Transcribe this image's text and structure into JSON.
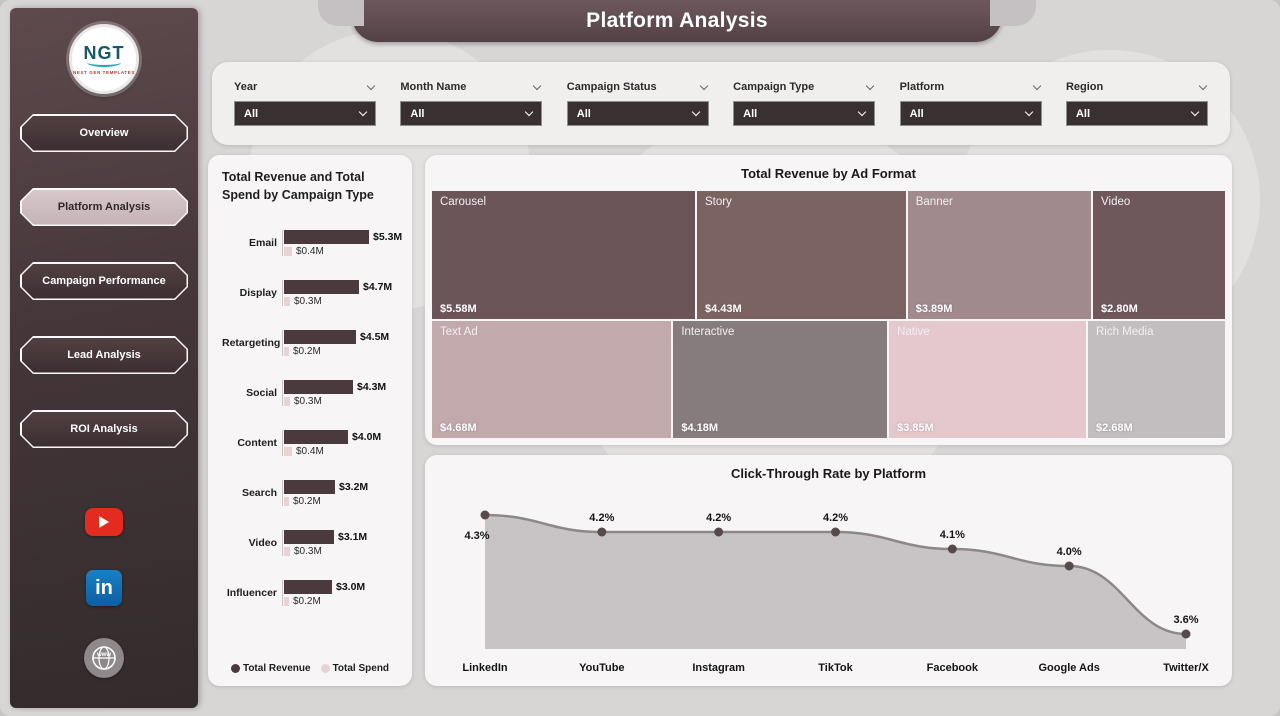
{
  "header": {
    "title": "Platform Analysis"
  },
  "sidebar": {
    "logo": {
      "brand": "NGT",
      "tagline": "NEXT GEN TEMPLATES"
    },
    "items": [
      {
        "label": "Overview",
        "active": false
      },
      {
        "label": "Platform Analysis",
        "active": true
      },
      {
        "label": "Campaign Performance",
        "active": false
      },
      {
        "label": "Lead Analysis",
        "active": false
      },
      {
        "label": "ROI Analysis",
        "active": false
      }
    ],
    "social_icons": [
      "youtube-icon",
      "linkedin-icon",
      "globe-icon"
    ],
    "globe_text": "www"
  },
  "filters": [
    {
      "label": "Year",
      "value": "All"
    },
    {
      "label": "Month Name",
      "value": "All"
    },
    {
      "label": "Campaign Status",
      "value": "All"
    },
    {
      "label": "Campaign Type",
      "value": "All"
    },
    {
      "label": "Platform",
      "value": "All"
    },
    {
      "label": "Region",
      "value": "All"
    }
  ],
  "colors": {
    "revenue_bar": "#4b3a3d",
    "spend_bar": "#e7d2d6",
    "area_fill": "#c8c4c5",
    "area_line": "#8e8788",
    "dot": "#564a4c",
    "accent_dark": "#5f4b4f"
  },
  "chart_data": [
    {
      "type": "bar",
      "title": "Total Revenue and Total Spend by Campaign Type",
      "orientation": "horizontal",
      "legend_position": "bottom",
      "categories": [
        "Email",
        "Display",
        "Retargeting",
        "Social",
        "Content",
        "Search",
        "Video",
        "Influencer"
      ],
      "series": [
        {
          "name": "Total Revenue",
          "color": "#4b3a3d",
          "values": [
            5.3,
            4.7,
            4.5,
            4.3,
            4.0,
            3.2,
            3.1,
            3.0
          ],
          "labels": [
            "$5.3M",
            "$4.7M",
            "$4.5M",
            "$4.3M",
            "$4.0M",
            "$3.2M",
            "$3.1M",
            "$3.0M"
          ]
        },
        {
          "name": "Total Spend",
          "color": "#e7d2d6",
          "values": [
            0.4,
            0.3,
            0.2,
            0.3,
            0.4,
            0.2,
            0.3,
            0.2
          ],
          "labels": [
            "$0.4M",
            "$0.3M",
            "$0.2M",
            "$0.3M",
            "$0.4M",
            "$0.2M",
            "$0.3M",
            "$0.2M"
          ]
        }
      ],
      "xlim": [
        0,
        6
      ]
    },
    {
      "type": "treemap",
      "title": "Total Revenue by Ad Format",
      "items": [
        {
          "label": "Carousel",
          "value": 5.58,
          "value_label": "$5.58M",
          "color": "#6c5559"
        },
        {
          "label": "Story",
          "value": 4.43,
          "value_label": "$4.43M",
          "color": "#7a6361"
        },
        {
          "label": "Banner",
          "value": 3.89,
          "value_label": "$3.89M",
          "color": "#a08a8d"
        },
        {
          "label": "Video",
          "value": 2.8,
          "value_label": "$2.80M",
          "color": "#6f585c"
        },
        {
          "label": "Text Ad",
          "value": 4.68,
          "value_label": "$4.68M",
          "color": "#c2a9ac"
        },
        {
          "label": "Interactive",
          "value": 4.18,
          "value_label": "$4.18M",
          "color": "#867c7e"
        },
        {
          "label": "Native",
          "value": 3.85,
          "value_label": "$3.85M",
          "color": "#e4c8cd"
        },
        {
          "label": "Rich Media",
          "value": 2.68,
          "value_label": "$2.68M",
          "color": "#c2bebf"
        }
      ]
    },
    {
      "type": "area",
      "title": "Click-Through Rate by Platform",
      "categories": [
        "LinkedIn",
        "YouTube",
        "Instagram",
        "TikTok",
        "Facebook",
        "Google Ads",
        "Twitter/X"
      ],
      "values": [
        4.3,
        4.2,
        4.2,
        4.2,
        4.1,
        4.0,
        3.6
      ],
      "labels": [
        "4.3%",
        "4.2%",
        "4.2%",
        "4.2%",
        "4.1%",
        "4.0%",
        "3.6%"
      ],
      "ylim": [
        3.4,
        4.4
      ],
      "grid": false,
      "legend": "none"
    }
  ]
}
